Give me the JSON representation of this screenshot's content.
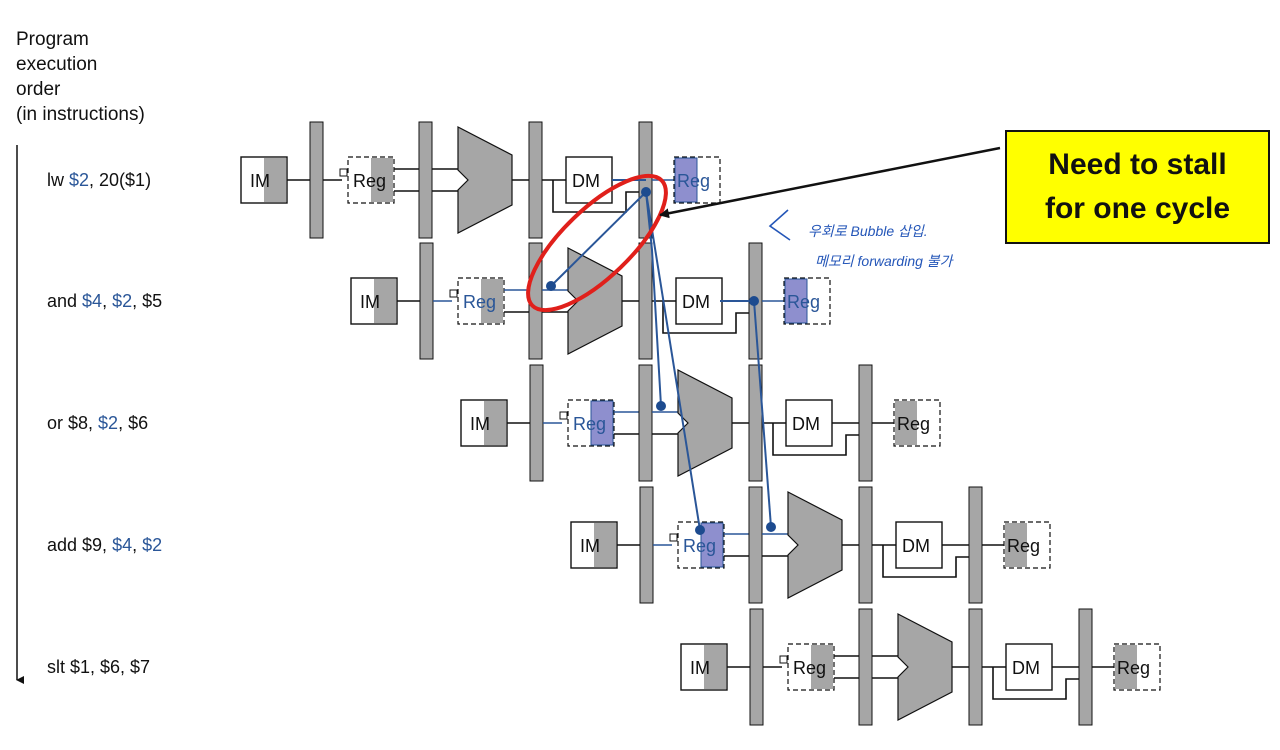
{
  "axis_label": [
    "Program",
    "execution",
    "order",
    "(in instructions)"
  ],
  "instructions": [
    {
      "parts": [
        {
          "t": "lw ",
          "hl": false
        },
        {
          "t": "$2",
          "hl": true
        },
        {
          "t": ", 20($1)",
          "hl": false
        }
      ]
    },
    {
      "parts": [
        {
          "t": "and ",
          "hl": false
        },
        {
          "t": "$4",
          "hl": true
        },
        {
          "t": ", ",
          "hl": false
        },
        {
          "t": "$2",
          "hl": true
        },
        {
          "t": ", $5",
          "hl": false
        }
      ]
    },
    {
      "parts": [
        {
          "t": "or $8, ",
          "hl": false
        },
        {
          "t": "$2",
          "hl": true
        },
        {
          "t": ", $6",
          "hl": false
        }
      ]
    },
    {
      "parts": [
        {
          "t": "add $9, ",
          "hl": false
        },
        {
          "t": "$4",
          "hl": true
        },
        {
          "t": ", ",
          "hl": false
        },
        {
          "t": "$2",
          "hl": true
        }
      ]
    },
    {
      "parts": [
        {
          "t": "slt $1, $6, $7",
          "hl": false
        }
      ]
    }
  ],
  "stage_labels": {
    "im": "IM",
    "reg": "Reg",
    "dm": "DM"
  },
  "callout": {
    "line1": "Need to stall",
    "line2": "for one cycle"
  },
  "handwritten_note": {
    "line1": "우회로 Bubble 삽입.",
    "line2": "메모리 forwarding 불가"
  },
  "colors": {
    "accent": "#2a5698",
    "highlight_fill": "#8e8fce",
    "alu_fill": "#a6a6a6",
    "callout_bg": "#ffff00",
    "ellipse": "#e0201b"
  }
}
